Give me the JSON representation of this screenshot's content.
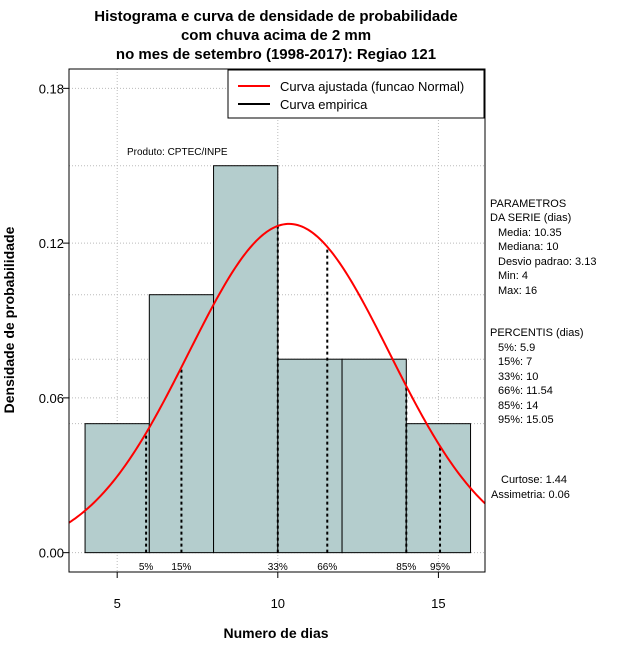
{
  "chart_data": {
    "type": "bar",
    "title": [
      "Histograma e curva de densidade de probabilidade",
      "com chuva acima de 2 mm",
      "no mes de setembro (1998-2017): Regiao 121"
    ],
    "xlabel": "Numero de dias",
    "ylabel": "Densidade de probabilidade",
    "xlim": [
      3.5,
      16.45
    ],
    "ylim": [
      -0.0075,
      0.1875
    ],
    "x_ticks": [
      5,
      10,
      15
    ],
    "x_tick_labels": [
      "5",
      "10",
      "15"
    ],
    "y_ticks": [
      0.0,
      0.06,
      0.12,
      0.18
    ],
    "y_tick_labels": [
      "0.00",
      "0.06",
      "0.12",
      "0.18"
    ],
    "bins": [
      {
        "start": 4,
        "end": 6,
        "density": 0.05
      },
      {
        "start": 6,
        "end": 8,
        "density": 0.1
      },
      {
        "start": 8,
        "end": 10,
        "density": 0.15
      },
      {
        "start": 10,
        "end": 12,
        "density": 0.075
      },
      {
        "start": 12,
        "end": 14,
        "density": 0.075
      },
      {
        "start": 14,
        "end": 16,
        "density": 0.05
      }
    ],
    "normal_fit": {
      "mean": 10.35,
      "sd": 3.13,
      "color": "#ff0000",
      "label": "Curva ajustada (funcao Normal)"
    },
    "empirical": {
      "label": "Curva empirica",
      "color": "#000000"
    },
    "bar_color": "#b4cdcd",
    "percentiles": [
      {
        "label": "5%",
        "value": 5.9
      },
      {
        "label": "15%",
        "value": 7
      },
      {
        "label": "33%",
        "value": 10
      },
      {
        "label": "66%",
        "value": 11.54
      },
      {
        "label": "85%",
        "value": 14
      },
      {
        "label": "95%",
        "value": 15.05
      }
    ],
    "credit": "Produto: CPTEC/INPE"
  },
  "side_panel": {
    "params_header_1": "PARAMETROS",
    "params_header_2": "DA SERIE (dias)",
    "params": [
      "Media: 10.35",
      "Mediana: 10",
      "Desvio padrao: 3.13",
      "Min: 4",
      "Max: 16"
    ],
    "pct_header": "PERCENTIS (dias)",
    "pct_lines": [
      "5%: 5.9",
      "15%: 7",
      "33%: 10",
      "66%: 11.54",
      "85%: 14",
      "95%: 15.05"
    ],
    "curtose": "Curtose: 1.44",
    "assimetria": "Assimetria: 0.06"
  }
}
